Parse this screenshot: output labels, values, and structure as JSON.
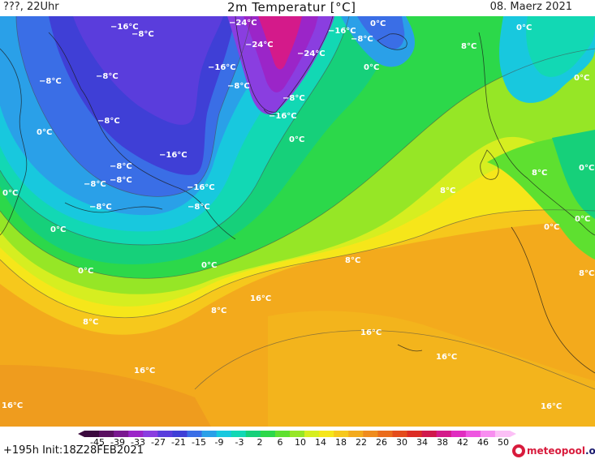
{
  "header": {
    "left": "???, 22Uhr",
    "title": "2m Temperatur [°C]",
    "right": "08. Maerz 2021"
  },
  "footer": {
    "init": "+195h Init:18Z28FEB2021",
    "logo_main": "meteopool",
    "logo_suffix": ".org"
  },
  "colorbar": {
    "ticks": [
      "-45",
      "-39",
      "-33",
      "-27",
      "-21",
      "-15",
      "-9",
      "-3",
      "2",
      "6",
      "10",
      "14",
      "18",
      "22",
      "26",
      "30",
      "34",
      "38",
      "42",
      "46",
      "50"
    ],
    "colors": [
      "#3b0a3e",
      "#5a1060",
      "#7a1890",
      "#9b25c8",
      "#8a3ee0",
      "#5a3ddc",
      "#3f3fd6",
      "#3a6ee6",
      "#2aa0e8",
      "#18c8de",
      "#12d8b4",
      "#16d07a",
      "#2cd84a",
      "#5ee030",
      "#96e626",
      "#d6ee20",
      "#f6e61a",
      "#f6c81c",
      "#f3aa1c",
      "#ef8c1e",
      "#ea6c1c",
      "#e44c1c",
      "#dc2c24",
      "#d0184c",
      "#d41a8a",
      "#e02cc0",
      "#ee56e0",
      "#f88ef0",
      "#fcc0f6"
    ]
  },
  "map": {
    "labels": [
      {
        "text": "−16°C",
        "id": "l1"
      },
      {
        "text": "−8°C",
        "id": "l2"
      },
      {
        "text": "−24°C",
        "id": "l3"
      },
      {
        "text": "−24°C",
        "id": "l4"
      },
      {
        "text": "−16°C",
        "id": "l5"
      },
      {
        "text": "0°C",
        "id": "l6"
      },
      {
        "text": "−8°C",
        "id": "l7"
      },
      {
        "text": "−24°C",
        "id": "l8"
      },
      {
        "text": "0°C",
        "id": "l9"
      },
      {
        "text": "0°C",
        "id": "l10"
      },
      {
        "text": "8°C",
        "id": "l11"
      },
      {
        "text": "−8°C",
        "id": "l12"
      },
      {
        "text": "−8°C",
        "id": "l13"
      },
      {
        "text": "−16°C",
        "id": "l14"
      },
      {
        "text": "−8°C",
        "id": "l15"
      },
      {
        "text": "0°C",
        "id": "l16"
      },
      {
        "text": "−8°C",
        "id": "l17"
      },
      {
        "text": "−8°C",
        "id": "l18"
      },
      {
        "text": "−16°C",
        "id": "l19"
      },
      {
        "text": "0°C",
        "id": "l20"
      },
      {
        "text": "0°C",
        "id": "l21"
      },
      {
        "text": "−16°C",
        "id": "l22"
      },
      {
        "text": "−8°C",
        "id": "l23"
      },
      {
        "text": "−8°C",
        "id": "l24"
      },
      {
        "text": "−8°C",
        "id": "l25"
      },
      {
        "text": "−16°C",
        "id": "l26"
      },
      {
        "text": "0°C",
        "id": "l27"
      },
      {
        "text": "−8°C",
        "id": "l28"
      },
      {
        "text": "−8°C",
        "id": "l29"
      },
      {
        "text": "8°C",
        "id": "l30"
      },
      {
        "text": "0°C",
        "id": "l31"
      },
      {
        "text": "0°C",
        "id": "l32"
      },
      {
        "text": "0°C",
        "id": "l33"
      },
      {
        "text": "0°C",
        "id": "l34"
      },
      {
        "text": "8°C",
        "id": "l35"
      },
      {
        "text": "0°C",
        "id": "l36"
      },
      {
        "text": "0°C",
        "id": "l37"
      },
      {
        "text": "8°C",
        "id": "l38"
      },
      {
        "text": "8°C",
        "id": "l39"
      },
      {
        "text": "16°C",
        "id": "l40"
      },
      {
        "text": "8°C",
        "id": "l41"
      },
      {
        "text": "8°C",
        "id": "l42"
      },
      {
        "text": "16°C",
        "id": "l43"
      },
      {
        "text": "16°C",
        "id": "l44"
      },
      {
        "text": "16°C",
        "id": "l45"
      },
      {
        "text": "16°C",
        "id": "l46"
      },
      {
        "text": "16°C",
        "id": "l47"
      }
    ]
  }
}
